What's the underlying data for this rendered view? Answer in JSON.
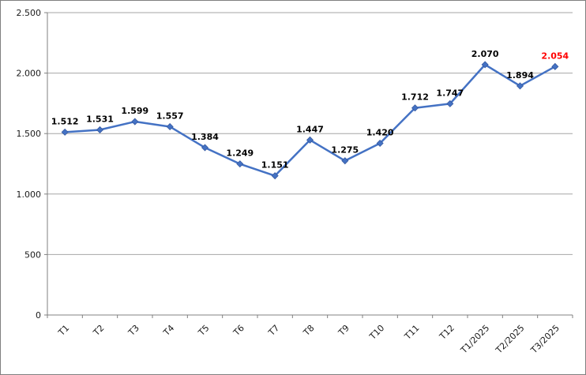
{
  "chart_data": {
    "type": "line",
    "title": "",
    "xlabel": "",
    "ylabel": "",
    "categories": [
      "T1",
      "T2",
      "T3",
      "T4",
      "T5",
      "T6",
      "T7",
      "T8",
      "T9",
      "T10",
      "T11",
      "T12",
      "T1/2025",
      "T2/2025",
      "T3/2025"
    ],
    "values": [
      1512,
      1531,
      1599,
      1557,
      1384,
      1249,
      1151,
      1447,
      1275,
      1420,
      1712,
      1747,
      2070,
      1894,
      2054
    ],
    "data_labels": [
      "1.512",
      "1.531",
      "1.599",
      "1.557",
      "1.384",
      "1.249",
      "1.151",
      "1.447",
      "1.275",
      "1.420",
      "1.712",
      "1.747",
      "2.070",
      "1.894",
      "2.054"
    ],
    "highlighted_label_index": 14,
    "ylim": [
      0,
      2500
    ],
    "ytick_step": 500,
    "ytick_labels": [
      "0",
      "500",
      "1.000",
      "1.500",
      "2.000",
      "2.500"
    ],
    "grid": true,
    "legend": "none",
    "x_label_rotation_deg": -45,
    "colors": {
      "series_line": "#4472C4",
      "marker_fill": "#4472C4",
      "marker_edge": "#35589e",
      "data_label": "#000000",
      "highlighted_label": "#FF0000",
      "gridline": "#A6A6A6",
      "axis": "#808080",
      "border": "#808080",
      "background": "#FFFFFF"
    }
  }
}
